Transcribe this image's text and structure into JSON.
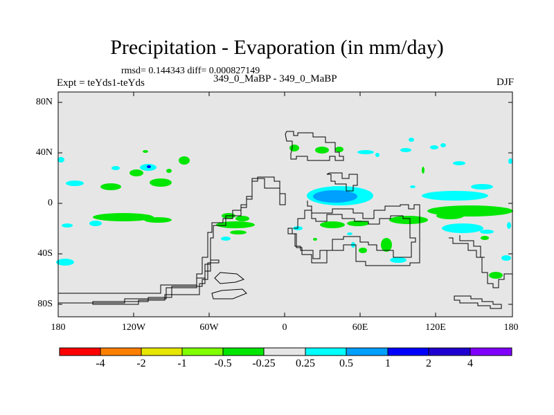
{
  "title": "Precipitation - Evaporation (in mm/day)",
  "stats": "rmsd= 0.144343 diff= 0.000827149",
  "expt": "Expt = teYds1-teYds",
  "case": "349_0_MaBP - 349_0_MaBP",
  "season": "DJF",
  "lat_labels": [
    "80N",
    "40N",
    "0",
    "40S",
    "80S"
  ],
  "lon_labels": [
    "180",
    "120W",
    "60W",
    "0",
    "60E",
    "120E",
    "180"
  ],
  "colorbar": {
    "labels": [
      "-4",
      "-2",
      "-1",
      "-0.5",
      "-0.25",
      "0.25",
      "0.5",
      "1",
      "2",
      "4"
    ],
    "colors": [
      "#ff0000",
      "#ff8000",
      "#e6e600",
      "#80ff00",
      "#00e600",
      "#e6e6e6",
      "#00ffff",
      "#00a0ff",
      "#0000ff",
      "#2000d0",
      "#8000ff"
    ]
  },
  "colors": {
    "land_background": "#e6e6e6",
    "green": "#00e600",
    "cyan": "#00ffff",
    "lightblue": "#00a0ff",
    "blue": "#0000ff"
  }
}
